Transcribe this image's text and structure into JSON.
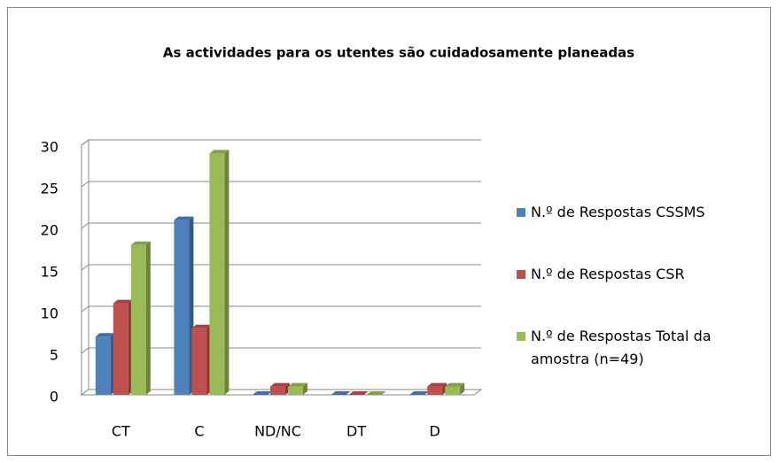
{
  "chart_data": {
    "type": "bar",
    "title": "As actividades para os utentes são cuidadosamente planeadas",
    "categories": [
      "CT",
      "C",
      "ND/NC",
      "DT",
      "D"
    ],
    "series": [
      {
        "name": "N.º de Respostas CSSMS",
        "color": "#4f81bd",
        "values": [
          7,
          21,
          0,
          0,
          0
        ]
      },
      {
        "name": "N.º de Respostas CSR",
        "color": "#c0504d",
        "values": [
          11,
          8,
          1,
          0,
          1
        ]
      },
      {
        "name": "N.º de Respostas Total da amostra (n=49)",
        "color": "#9bbb59",
        "values": [
          18,
          29,
          1,
          0,
          1
        ]
      }
    ],
    "ylim": [
      0,
      30
    ],
    "yticks": [
      0,
      5,
      10,
      15,
      20,
      25,
      30
    ],
    "grid": true,
    "legend": "right"
  }
}
